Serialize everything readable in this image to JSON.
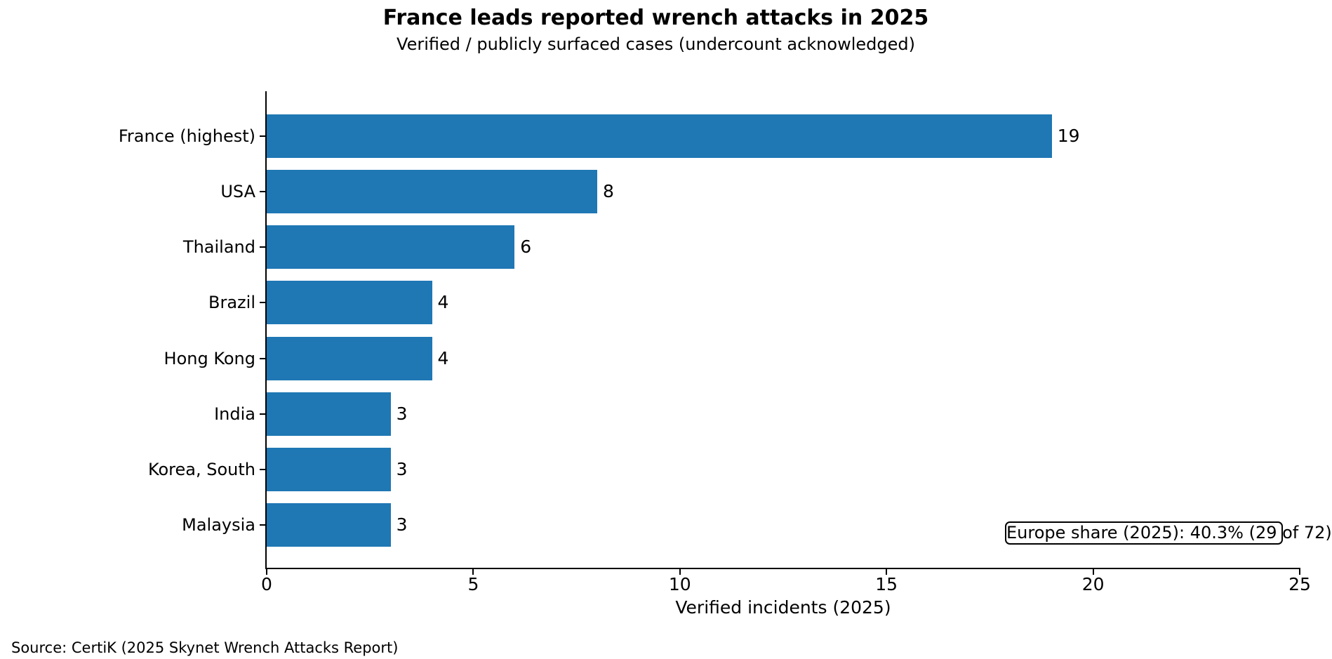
{
  "chart_data": {
    "type": "bar",
    "orientation": "horizontal",
    "title": "France leads reported wrench attacks in 2025",
    "subtitle": "Verified / publicly surfaced cases (undercount acknowledged)",
    "categories": [
      "France (highest)",
      "USA",
      "Thailand",
      "Brazil",
      "Hong Kong",
      "India",
      "Korea, South",
      "Malaysia"
    ],
    "values": [
      19,
      8,
      6,
      4,
      4,
      3,
      3,
      3
    ],
    "xlabel": "Verified incidents (2025)",
    "ylabel": "",
    "xlim": [
      0,
      25
    ],
    "xticks": [
      0,
      5,
      10,
      15,
      20,
      25
    ],
    "grid": false,
    "legend": "none",
    "annotation": "Europe share (2025): 40.3% (29 of 72)",
    "source": "Source: CertiK (2025 Skynet Wrench Attacks Report)"
  },
  "colors": {
    "bar": "#1f77b4",
    "text": "#000000",
    "spine": "#000000",
    "background": "#ffffff",
    "annotation_border": "#000000"
  }
}
